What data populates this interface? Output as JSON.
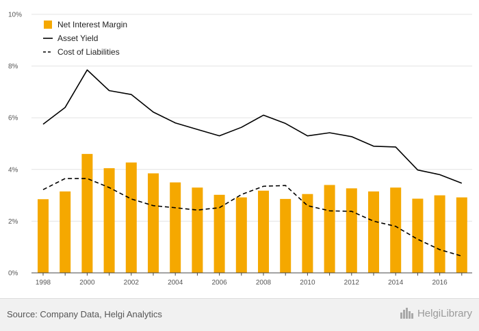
{
  "chart_data": {
    "type": "bar",
    "x": [
      1998,
      1999,
      2000,
      2001,
      2002,
      2003,
      2004,
      2005,
      2006,
      2007,
      2008,
      2009,
      2010,
      2011,
      2012,
      2013,
      2014,
      2015,
      2016,
      2017
    ],
    "x_tick_labels": [
      "1998",
      "2000",
      "2002",
      "2004",
      "2006",
      "2008",
      "2010",
      "2012",
      "2014",
      "2016"
    ],
    "y_tick_labels": [
      "0%",
      "2%",
      "4%",
      "6%",
      "8%",
      "10%"
    ],
    "ylim": [
      0,
      10
    ],
    "grid": true,
    "legend_position": "top-left",
    "series": [
      {
        "name": "Net Interest Margin",
        "type": "bar",
        "color": "#f5a800",
        "values": [
          2.85,
          3.15,
          4.6,
          4.05,
          4.27,
          3.85,
          3.5,
          3.3,
          3.02,
          2.92,
          3.18,
          2.86,
          3.05,
          3.4,
          3.27,
          3.15,
          3.3,
          2.87,
          3.0,
          2.92
        ]
      },
      {
        "name": "Asset Yield",
        "type": "line",
        "style": "solid",
        "color": "#000000",
        "values": [
          5.75,
          6.4,
          7.85,
          7.05,
          6.9,
          6.22,
          5.8,
          5.55,
          5.3,
          5.63,
          6.1,
          5.78,
          5.3,
          5.42,
          5.27,
          4.9,
          4.87,
          3.98,
          3.8,
          3.47
        ]
      },
      {
        "name": "Cost of Liabilities",
        "type": "line",
        "style": "dashed",
        "color": "#000000",
        "values": [
          3.22,
          3.65,
          3.65,
          3.3,
          2.86,
          2.6,
          2.52,
          2.43,
          2.52,
          3.03,
          3.35,
          3.38,
          2.6,
          2.4,
          2.38,
          2.0,
          1.8,
          1.3,
          0.9,
          0.65
        ]
      }
    ]
  },
  "footer": {
    "source": "Source: Company Data, Helgi Analytics",
    "brand": "HelgiLibrary"
  },
  "icons": {
    "brand": "city-skyline-icon"
  }
}
